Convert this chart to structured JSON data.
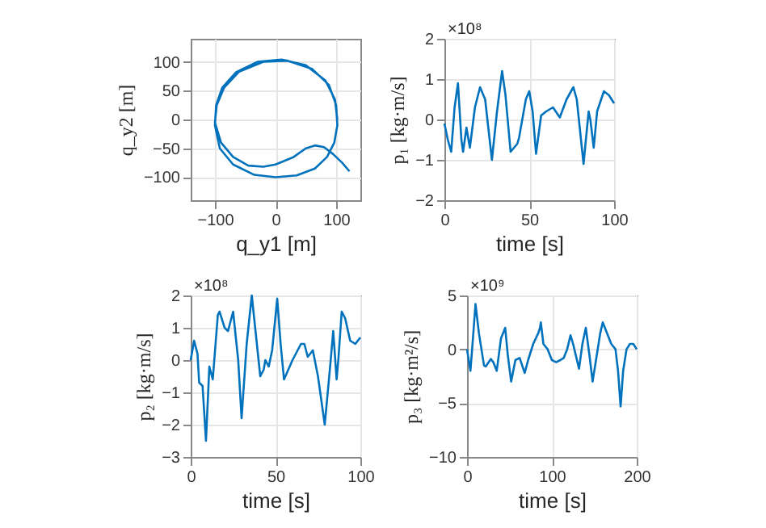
{
  "chart_data": [
    {
      "type": "line",
      "xlabel": "q_y1 [m]",
      "ylabel": "q_y2 [m]",
      "xlim": [
        -140,
        140
      ],
      "ylim": [
        -140,
        140
      ],
      "xticks": [
        -100,
        0,
        100
      ],
      "yticks": [
        -100,
        -50,
        0,
        50,
        100
      ],
      "grid": true,
      "x": [
        122,
        110,
        95,
        80,
        65,
        50,
        30,
        0,
        -20,
        -45,
        -70,
        -90,
        -100,
        -97,
        -85,
        -60,
        -20,
        20,
        60,
        88,
        100,
        102,
        97,
        85,
        65,
        35,
        0,
        -35,
        -70,
        -92,
        -100,
        -98,
        -88,
        -65,
        -30,
        10,
        50,
        82,
        98,
        102
      ],
      "series": [
        {
          "color": "#0072bd",
          "values": [
            -90,
            -75,
            -60,
            -48,
            -45,
            -50,
            -65,
            -78,
            -82,
            -80,
            -65,
            -40,
            -5,
            25,
            55,
            83,
            100,
            102,
            88,
            60,
            25,
            -10,
            -40,
            -65,
            -85,
            -97,
            -100,
            -96,
            -78,
            -50,
            -10,
            25,
            55,
            82,
            100,
            104,
            94,
            68,
            35,
            0
          ]
        }
      ]
    },
    {
      "type": "line",
      "xlabel": "time [s]",
      "ylabel": "p₁ [kg·m/s]",
      "annotations": [
        "×10⁸"
      ],
      "xlim": [
        0,
        100
      ],
      "ylim": [
        -2,
        2
      ],
      "xticks": [
        0,
        50,
        100
      ],
      "yticks": [
        -2,
        -1,
        0,
        1,
        2
      ],
      "grid": true,
      "x": [
        0,
        2,
        4,
        6,
        8,
        10,
        11,
        13,
        15,
        18,
        21,
        24,
        28,
        31,
        34,
        36,
        39,
        43,
        44,
        48,
        50,
        52,
        54,
        57,
        60,
        64,
        68,
        72,
        76,
        78,
        82,
        85,
        86,
        88,
        90,
        94,
        97,
        100
      ],
      "series": [
        {
          "color": "#0072bd",
          "values": [
            -0.1,
            -0.5,
            -0.8,
            0.3,
            0.9,
            -0.5,
            -0.8,
            -0.2,
            -0.7,
            0.3,
            0.8,
            0.5,
            -1.0,
            0.2,
            1.2,
            0.6,
            -0.8,
            -0.6,
            -0.45,
            0.5,
            0.7,
            0.2,
            -0.85,
            0.1,
            0.2,
            0.3,
            0.05,
            0.5,
            0.8,
            0.5,
            -1.1,
            0.2,
            0.0,
            -0.7,
            0.2,
            0.7,
            0.6,
            0.4
          ]
        }
      ]
    },
    {
      "type": "line",
      "xlabel": "time [s]",
      "ylabel": "p₂ [kg·m/s]",
      "annotations": [
        "×10⁸"
      ],
      "xlim": [
        0,
        100
      ],
      "ylim": [
        -3,
        2
      ],
      "xticks": [
        0,
        50,
        100
      ],
      "yticks": [
        -3,
        -2,
        -1,
        0,
        1,
        2
      ],
      "grid": true,
      "x": [
        0,
        2,
        4,
        5,
        7,
        9,
        11,
        13,
        16,
        17,
        20,
        22,
        25,
        28,
        30,
        33,
        36,
        38,
        41,
        43,
        44,
        46,
        48,
        51,
        53,
        55,
        60,
        65,
        67,
        69,
        72,
        75,
        79,
        82,
        84,
        86,
        87,
        89,
        91,
        94,
        97,
        100
      ],
      "series": [
        {
          "color": "#0072bd",
          "values": [
            0.0,
            0.6,
            0.2,
            -0.7,
            -0.8,
            -2.5,
            -0.2,
            -0.6,
            1.4,
            1.5,
            1.0,
            0.9,
            1.5,
            0.0,
            -1.8,
            0.5,
            2.0,
            1.0,
            -0.5,
            -0.3,
            0.0,
            -0.2,
            0.3,
            1.9,
            0.5,
            -0.6,
            0.0,
            0.5,
            0.5,
            0.1,
            0.3,
            -0.5,
            -2.0,
            -0.3,
            0.9,
            -0.6,
            0.0,
            1.5,
            1.3,
            0.6,
            0.5,
            0.7
          ]
        }
      ]
    },
    {
      "type": "line",
      "xlabel": "time [s]",
      "ylabel": "p₃ [kg·m²/s]",
      "annotations": [
        "×10⁹"
      ],
      "xlim": [
        0,
        200
      ],
      "ylim": [
        -10,
        5
      ],
      "xticks": [
        0,
        100,
        200
      ],
      "yticks": [
        -10,
        -5,
        0,
        5
      ],
      "grid": true,
      "x": [
        0,
        4,
        6,
        10,
        14,
        20,
        22,
        28,
        31,
        35,
        40,
        45,
        48,
        52,
        57,
        62,
        68,
        72,
        78,
        84,
        86,
        87,
        90,
        95,
        100,
        105,
        110,
        114,
        118,
        122,
        125,
        132,
        136,
        140,
        145,
        148,
        152,
        157,
        160,
        165,
        170,
        175,
        178,
        181,
        184,
        188,
        192,
        196,
        200
      ],
      "series": [
        {
          "color": "#0072bd",
          "values": [
            0,
            -2,
            0,
            4.2,
            1.5,
            -1.5,
            -1.6,
            -0.9,
            -1.2,
            -2.0,
            1.0,
            2.0,
            -0.5,
            -3.0,
            -1.0,
            -0.8,
            -2.2,
            -1.0,
            0.5,
            1.5,
            2.0,
            2.5,
            0.5,
            0,
            -1,
            -1.2,
            -1,
            -0.8,
            0,
            1.3,
            0.5,
            -1.8,
            0.5,
            2.0,
            -1,
            -3,
            -1,
            1.5,
            2.5,
            1.5,
            0.5,
            0,
            -2,
            -5.3,
            -2,
            0,
            0.5,
            0.5,
            0
          ]
        }
      ]
    }
  ]
}
